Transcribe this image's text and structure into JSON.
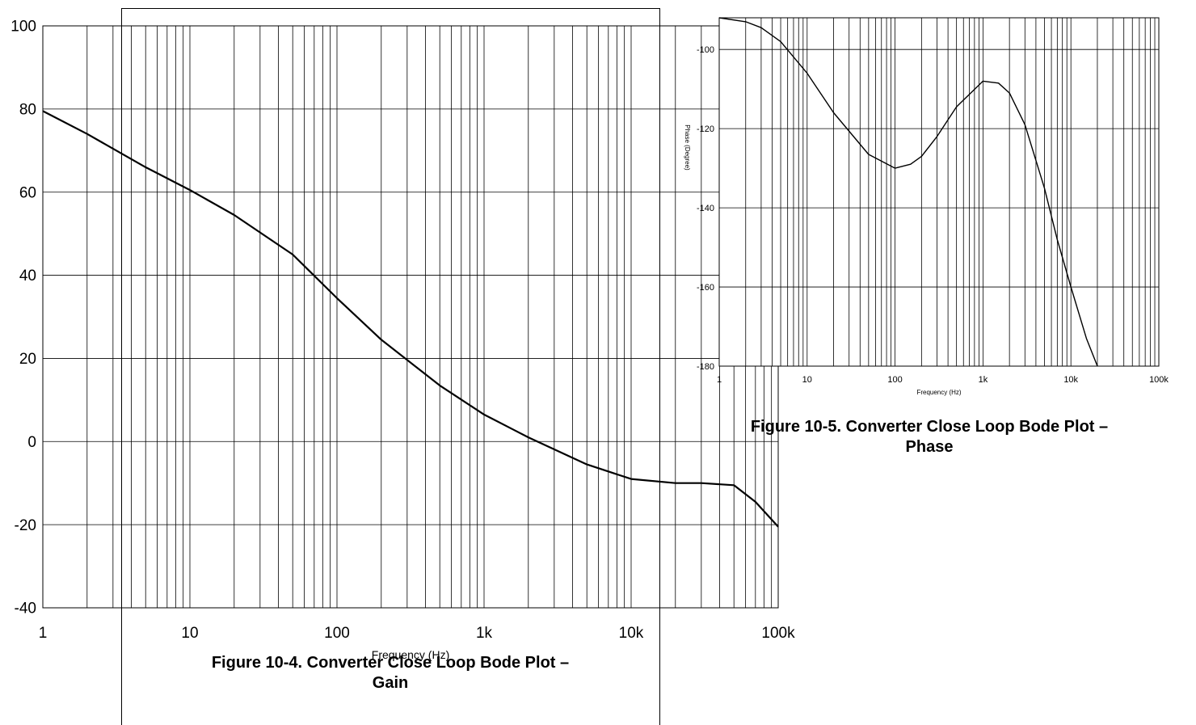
{
  "gain_figure": {
    "caption_line1": "Figure 10-4. Converter Close Loop Bode Plot –",
    "caption_line2": "Gain"
  },
  "phase_figure": {
    "caption_line1": "Figure 10-5. Converter Close Loop Bode Plot –",
    "caption_line2": "Phase"
  },
  "chart_data": [
    {
      "type": "line",
      "title": "",
      "xlabel": "Frequency (Hz)",
      "ylabel": "",
      "xscale": "log",
      "xlim": [
        1,
        100000
      ],
      "ylim": [
        -40,
        100
      ],
      "grid": true,
      "x_ticks": [
        1,
        10,
        100,
        1000,
        10000,
        100000
      ],
      "x_tick_labels": [
        "1",
        "10",
        "100",
        "1k",
        "10k",
        "100k"
      ],
      "y_ticks": [
        -40,
        -20,
        0,
        20,
        40,
        60,
        80,
        100
      ],
      "y_tick_labels": [
        "-40",
        "-20",
        "0",
        "20",
        "40",
        "60",
        "80",
        "100"
      ],
      "series": [
        {
          "x": [
            1,
            2,
            5,
            10,
            20,
            50,
            100,
            200,
            500,
            1000,
            2000,
            5000,
            10000,
            20000,
            30000,
            50000,
            70000,
            100000
          ],
          "y": [
            79.5,
            74,
            66,
            60.5,
            54.5,
            45,
            34.5,
            24.5,
            13.5,
            6.5,
            1,
            -5.5,
            -9,
            -10,
            -10,
            -10.5,
            -14.5,
            -20.5
          ]
        }
      ]
    },
    {
      "type": "line",
      "title": "",
      "xlabel": "Frequency (Hz)",
      "ylabel": "Phase (Degree)",
      "xscale": "log",
      "xlim": [
        1,
        100000
      ],
      "ylim": [
        -180,
        -92
      ],
      "grid": true,
      "x_ticks": [
        1,
        10,
        100,
        1000,
        10000,
        100000
      ],
      "x_tick_labels": [
        "1",
        "10",
        "100",
        "1k",
        "10k",
        "100k"
      ],
      "y_ticks": [
        -180,
        -160,
        -140,
        -120,
        -100
      ],
      "y_tick_labels": [
        "-180",
        "-160",
        "-140",
        "-120",
        "-100"
      ],
      "series": [
        {
          "x": [
            1,
            2,
            3,
            5,
            10,
            20,
            50,
            100,
            150,
            200,
            300,
            500,
            1000,
            1500,
            2000,
            3000,
            5000,
            7000,
            10000,
            15000,
            20000
          ],
          "y": [
            -92,
            -93,
            -94.5,
            -98,
            -106,
            -116,
            -126.5,
            -130,
            -129,
            -127,
            -122,
            -114.5,
            -108,
            -108.5,
            -111,
            -119,
            -135,
            -148,
            -160,
            -173,
            -180
          ]
        }
      ]
    }
  ]
}
